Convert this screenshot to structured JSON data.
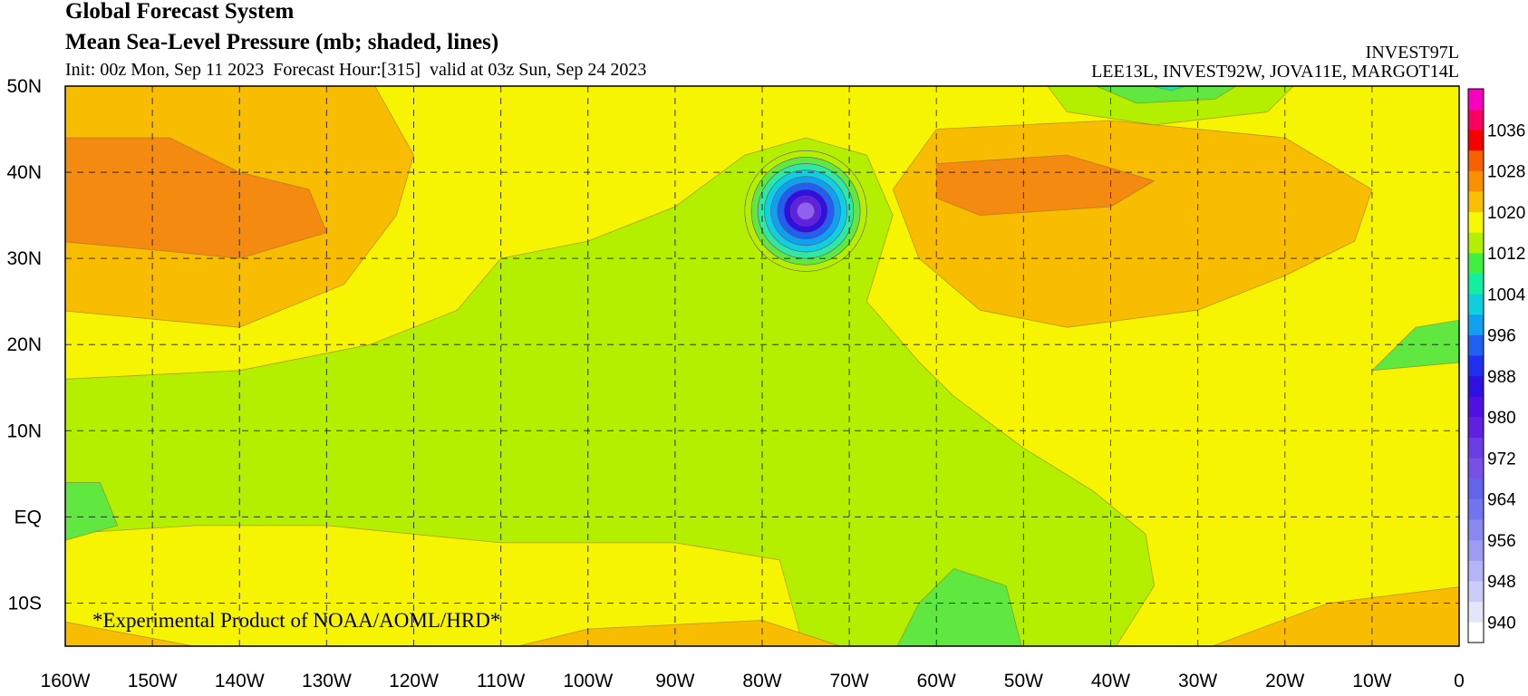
{
  "header": {
    "title": "Global Forecast System",
    "subtitle": "Mean Sea-Level Pressure (mb; shaded, lines)",
    "init": "Init: 00z Mon, Sep 11 2023  Forecast Hour:[315]  valid at 03z Sun, Sep 24 2023",
    "storms": [
      "INVEST97L",
      "LEE13L, INVEST92W, JOVA11E, MARGOT14L"
    ]
  },
  "map": {
    "xlim": [
      -160,
      0
    ],
    "ylim": [
      -15,
      50
    ],
    "xticks": [
      {
        "value": -160,
        "label": "160W"
      },
      {
        "value": -150,
        "label": "150W"
      },
      {
        "value": -140,
        "label": "140W"
      },
      {
        "value": -130,
        "label": "130W"
      },
      {
        "value": -120,
        "label": "120W"
      },
      {
        "value": -110,
        "label": "110W"
      },
      {
        "value": -100,
        "label": "100W"
      },
      {
        "value": -90,
        "label": "90W"
      },
      {
        "value": -80,
        "label": "80W"
      },
      {
        "value": -70,
        "label": "70W"
      },
      {
        "value": -60,
        "label": "60W"
      },
      {
        "value": -50,
        "label": "50W"
      },
      {
        "value": -40,
        "label": "40W"
      },
      {
        "value": -30,
        "label": "30W"
      },
      {
        "value": -20,
        "label": "20W"
      },
      {
        "value": -10,
        "label": "10W"
      },
      0
    ],
    "yticks": [
      {
        "value": -10,
        "label": "10S"
      },
      {
        "value": 0,
        "label": "EQ"
      },
      {
        "value": 10,
        "label": "10N"
      },
      {
        "value": 20,
        "label": "20N"
      },
      {
        "value": 30,
        "label": "30N"
      },
      {
        "value": 40,
        "label": "40N"
      },
      {
        "value": 50,
        "label": "50N"
      }
    ],
    "grid": true,
    "note": "*Experimental Product of NOAA/AOML/HRD*"
  },
  "colorbar": {
    "range": [
      936,
      1044
    ],
    "colors": [
      "#ffffff",
      "#e4e4fa",
      "#ccccf8",
      "#b4b4f6",
      "#9c9cf2",
      "#8888f0",
      "#7474ee",
      "#6464ea",
      "#7850e8",
      "#6a3ce4",
      "#6020e0",
      "#5010e0",
      "#3010e0",
      "#2030f0",
      "#2060f0",
      "#10a0f0",
      "#10d0e0",
      "#10f0a0",
      "#40f040",
      "#b0f000",
      "#f8f800",
      "#f8c000",
      "#f89000",
      "#f86000",
      "#f80000",
      "#f80060",
      "#f800c0"
    ],
    "ticks": [
      940,
      948,
      956,
      964,
      972,
      980,
      988,
      996,
      1004,
      1012,
      1020,
      1028,
      1036
    ]
  }
}
